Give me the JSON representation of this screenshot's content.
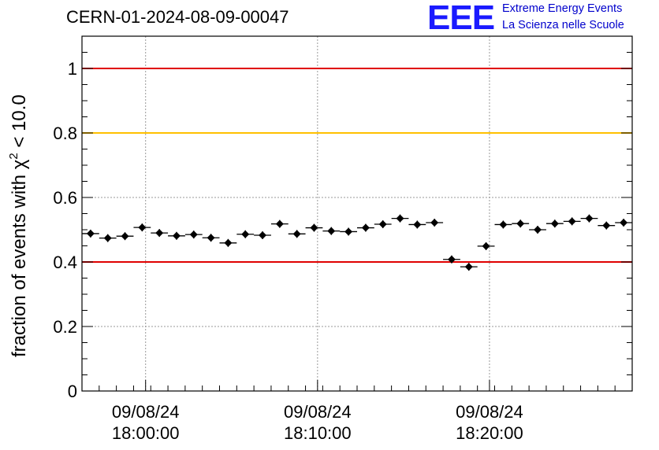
{
  "header": {
    "run_title": "CERN-01-2024-08-09-00047",
    "logo_text": "EEE",
    "logo_line1": "Extreme Energy Events",
    "logo_line2": "La Scienza nelle Scuole",
    "logo_color": "#1a1aff"
  },
  "chart_data": {
    "type": "scatter",
    "title": "",
    "ylabel_main": "fraction of events with χ",
    "ylabel_sup": "2",
    "ylabel_tail": " < 10.0",
    "xlabel": "",
    "ylim": [
      0,
      1.1
    ],
    "yticks": [
      0,
      0.2,
      0.4,
      0.6,
      0.8,
      1
    ],
    "ytick_labels": [
      "0",
      "0.2",
      "0.4",
      "0.6",
      "0.8",
      "1"
    ],
    "x_axis": {
      "start_minutes": 0,
      "end_minutes": 32,
      "major_ticks": [
        {
          "minute": 3.7,
          "date": "09/08/24",
          "time": "18:00:00"
        },
        {
          "minute": 13.7,
          "date": "09/08/24",
          "time": "18:10:00"
        },
        {
          "minute": 23.7,
          "date": "09/08/24",
          "time": "18:20:00"
        }
      ]
    },
    "grid": true,
    "reference_lines": [
      {
        "y": 1.0,
        "color": "#e00000"
      },
      {
        "y": 0.8,
        "color": "#ffc000"
      },
      {
        "y": 0.4,
        "color": "#e00000"
      }
    ],
    "bin_width_minutes": 1,
    "series": [
      {
        "marker_color": "#000000",
        "points": [
          {
            "x": 0.5,
            "y": 0.488
          },
          {
            "x": 1.5,
            "y": 0.474
          },
          {
            "x": 2.5,
            "y": 0.48
          },
          {
            "x": 3.5,
            "y": 0.507
          },
          {
            "x": 4.5,
            "y": 0.49
          },
          {
            "x": 5.5,
            "y": 0.481
          },
          {
            "x": 6.5,
            "y": 0.485
          },
          {
            "x": 7.5,
            "y": 0.475
          },
          {
            "x": 8.5,
            "y": 0.459
          },
          {
            "x": 9.5,
            "y": 0.486
          },
          {
            "x": 10.5,
            "y": 0.483
          },
          {
            "x": 11.5,
            "y": 0.518
          },
          {
            "x": 12.5,
            "y": 0.487
          },
          {
            "x": 13.5,
            "y": 0.506
          },
          {
            "x": 14.5,
            "y": 0.496
          },
          {
            "x": 15.5,
            "y": 0.494
          },
          {
            "x": 16.5,
            "y": 0.506
          },
          {
            "x": 17.5,
            "y": 0.517
          },
          {
            "x": 18.5,
            "y": 0.535
          },
          {
            "x": 19.5,
            "y": 0.516
          },
          {
            "x": 20.5,
            "y": 0.522
          },
          {
            "x": 21.5,
            "y": 0.408
          },
          {
            "x": 22.5,
            "y": 0.385
          },
          {
            "x": 23.5,
            "y": 0.449
          },
          {
            "x": 24.5,
            "y": 0.516
          },
          {
            "x": 25.5,
            "y": 0.519
          },
          {
            "x": 26.5,
            "y": 0.5
          },
          {
            "x": 27.5,
            "y": 0.519
          },
          {
            "x": 28.5,
            "y": 0.526
          },
          {
            "x": 29.5,
            "y": 0.535
          },
          {
            "x": 30.5,
            "y": 0.513
          },
          {
            "x": 31.5,
            "y": 0.522
          }
        ]
      }
    ]
  }
}
